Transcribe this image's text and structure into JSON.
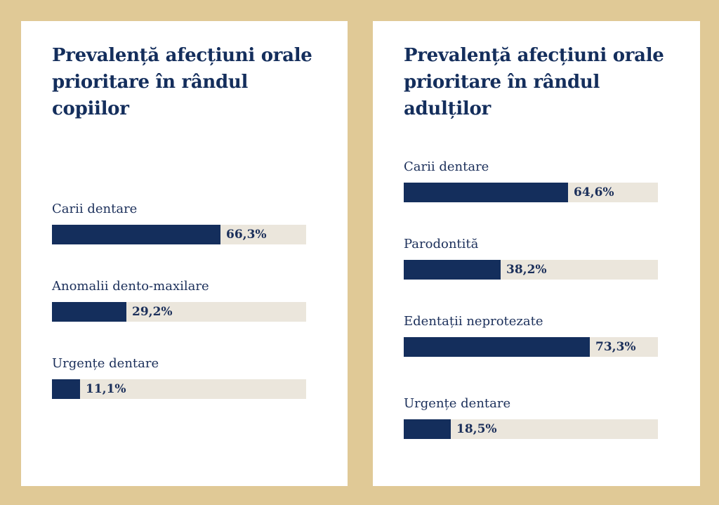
{
  "colors": {
    "background": "#e0c996",
    "card": "#ffffff",
    "bar_fill": "#142e5c",
    "bar_track": "#ebe6dc",
    "text": "#1b2f5a"
  },
  "chart_data": [
    {
      "type": "bar",
      "orientation": "horizontal",
      "title": "Prevalență afecțiuni orale prioritare în rândul copiilor",
      "categories": [
        "Carii dentare",
        "Anomalii dento-maxilare",
        "Urgențe dentare"
      ],
      "values": [
        66.3,
        29.2,
        11.1
      ],
      "value_labels": [
        "66,3%",
        "29,2%",
        "11,1%"
      ],
      "unit": "%",
      "xlim": [
        0,
        100
      ],
      "grid": false,
      "legend": "none"
    },
    {
      "type": "bar",
      "orientation": "horizontal",
      "title": "Prevalență afecțiuni orale prioritare în rândul adulților",
      "categories": [
        "Carii dentare",
        "Parodontită",
        "Edentații neprotezate",
        "Urgențe dentare"
      ],
      "values": [
        64.6,
        38.2,
        73.3,
        18.5
      ],
      "value_labels": [
        "64,6%",
        "38,2%",
        "73,3%",
        "18,5%"
      ],
      "unit": "%",
      "xlim": [
        0,
        100
      ],
      "grid": false,
      "legend": "none"
    }
  ]
}
